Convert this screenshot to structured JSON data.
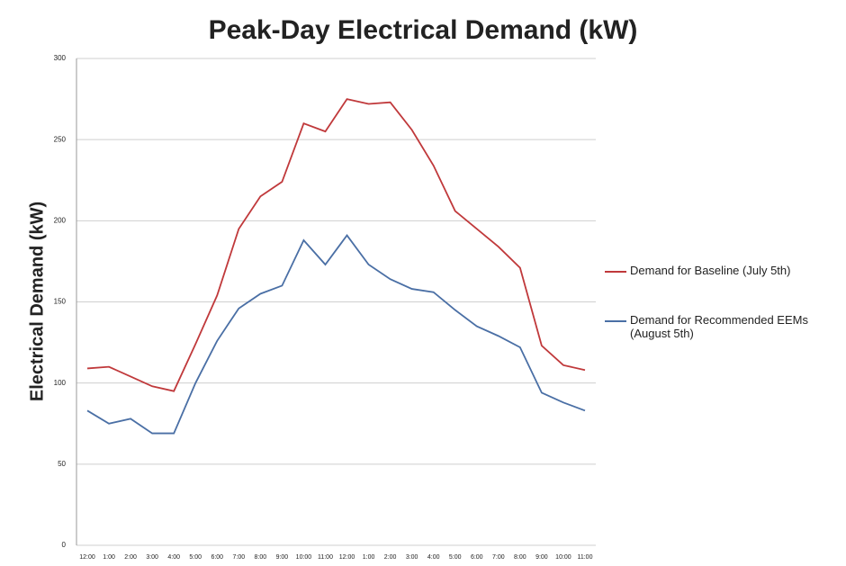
{
  "chart_data": {
    "type": "line",
    "title": "Peak-Day Electrical Demand (kW)",
    "y_label": "Electrical Demand (kW)",
    "categories": [
      "12:00",
      "1:00",
      "2:00",
      "3:00",
      "4:00",
      "5:00",
      "6:00",
      "7:00",
      "8:00",
      "9:00",
      "10:00",
      "11:00",
      "12:00",
      "1:00",
      "2:00",
      "3:00",
      "4:00",
      "5:00",
      "6:00",
      "7:00",
      "8:00",
      "9:00",
      "10:00",
      "11:00"
    ],
    "series": [
      {
        "name": "Demand for Baseline (July 5th)",
        "color": "#c0393b",
        "values": [
          109,
          110,
          104,
          98,
          95,
          124,
          154,
          195,
          215,
          224,
          260,
          255,
          275,
          272,
          273,
          256,
          234,
          206,
          195,
          184,
          171,
          123,
          111,
          108
        ]
      },
      {
        "name": "Demand for Recommended EEMs (August 5th)",
        "color": "#4a6fa5",
        "values": [
          83,
          75,
          78,
          69,
          69,
          100,
          126,
          146,
          155,
          160,
          188,
          173,
          191,
          173,
          164,
          158,
          156,
          145,
          135,
          129,
          122,
          94,
          88,
          83
        ]
      }
    ],
    "ylim": [
      0,
      300
    ],
    "yticks": [
      0,
      50,
      100,
      150,
      200,
      250,
      300
    ],
    "grid": true,
    "legend": "right"
  }
}
